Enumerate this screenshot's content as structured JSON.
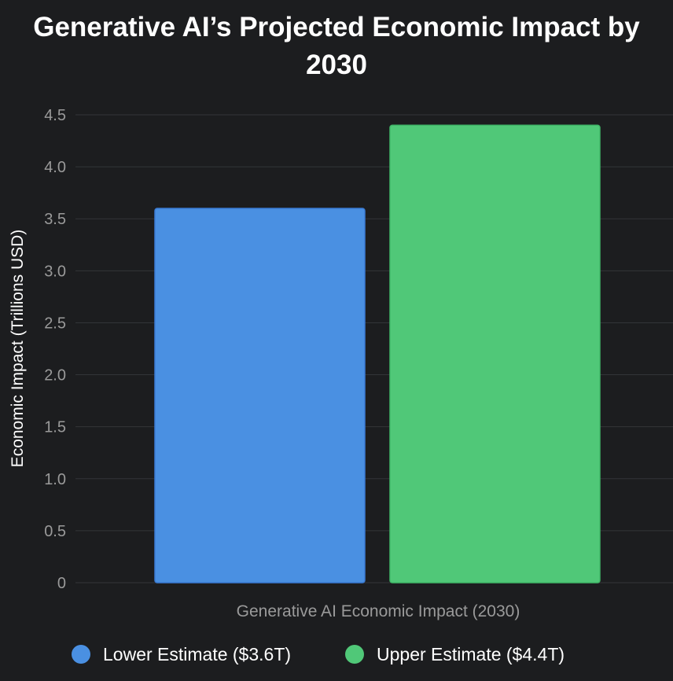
{
  "chart_data": {
    "type": "bar",
    "title_lines": [
      "Generative AI’s Projected Economic Impact by",
      "2030"
    ],
    "xlabel": "Generative AI Economic Impact (2030)",
    "ylabel": "Economic Impact (Trillions USD)",
    "categories": [
      "Generative AI Economic Impact (2030)"
    ],
    "series": [
      {
        "name": "Lower Estimate ($3.6T)",
        "values": [
          3.6
        ],
        "color": "#4a90e2"
      },
      {
        "name": "Upper Estimate ($4.4T)",
        "values": [
          4.4
        ],
        "color": "#50c878"
      }
    ],
    "ylim": [
      0,
      4.5
    ],
    "yticks": [
      "0",
      "0.5",
      "1.0",
      "1.5",
      "2.0",
      "2.5",
      "3.0",
      "3.5",
      "4.0",
      "4.5"
    ],
    "grid": true,
    "legend_position": "bottom"
  },
  "colors": {
    "background": "#1c1d1f",
    "gridline": "#333538",
    "tick_text": "#9a9a9a",
    "title_text": "#ffffff"
  }
}
